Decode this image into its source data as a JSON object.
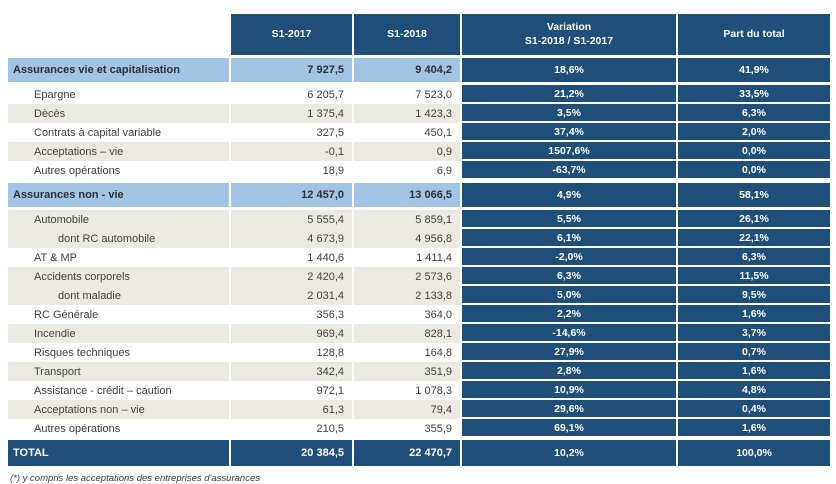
{
  "colors": {
    "header_bg": "#1F4E79",
    "section_bg": "#A2C4E5",
    "stripe_bg": "#ECEAE0",
    "dark_cell_text": "#FFFFFF",
    "body_text": "#3F3F3F"
  },
  "table": {
    "header": {
      "s1_2017": "S1-2017",
      "s1_2018": "S1-2018",
      "variation_line1": "Variation",
      "variation_line2": "S1-2018 / S1-2017",
      "part_du_total": "Part du total"
    },
    "rows": [
      {
        "type": "section",
        "stripe": "none",
        "label": "Assurances vie et capitalisation",
        "s1_2017": "7 927,5",
        "s1_2018": "9 404,2",
        "variation": "18,6%",
        "part": "41,9%"
      },
      {
        "type": "item",
        "stripe": "plain",
        "label": "Epargne",
        "s1_2017": "6 205,7",
        "s1_2018": "7 523,0",
        "variation": "21,2%",
        "part": "33,5%"
      },
      {
        "type": "item",
        "stripe": "shaded",
        "label": "Dècès",
        "s1_2017": "1 375,4",
        "s1_2018": "1 423,3",
        "variation": "3,5%",
        "part": "6,3%"
      },
      {
        "type": "item",
        "stripe": "plain",
        "label": "Contrats à capital variable",
        "s1_2017": "327,5",
        "s1_2018": "450,1",
        "variation": "37,4%",
        "part": "2,0%"
      },
      {
        "type": "item",
        "stripe": "shaded",
        "label": "Acceptations – vie",
        "s1_2017": "-0,1",
        "s1_2018": "0,9",
        "variation": "1507,6%",
        "part": "0,0%"
      },
      {
        "type": "item",
        "stripe": "plain",
        "label": "Autres opérations",
        "s1_2017": "18,9",
        "s1_2018": "6,9",
        "variation": "-63,7%",
        "part": "0,0%"
      },
      {
        "type": "section",
        "stripe": "none",
        "label": "Assurances non - vie",
        "s1_2017": "12 457,0",
        "s1_2018": "13 066,5",
        "variation": "4,9%",
        "part": "58,1%"
      },
      {
        "type": "item",
        "stripe": "shaded",
        "label": "Automobile",
        "s1_2017": "5 555,4",
        "s1_2018": "5 859,1",
        "variation": "5,5%",
        "part": "26,1%"
      },
      {
        "type": "subitem",
        "stripe": "shaded",
        "label": "dont RC automobile",
        "s1_2017": "4 673,9",
        "s1_2018": "4 956,8",
        "variation": "6,1%",
        "part": "22,1%"
      },
      {
        "type": "item",
        "stripe": "plain",
        "label": "AT & MP",
        "s1_2017": "1 440,6",
        "s1_2018": "1 411,4",
        "variation": "-2,0%",
        "part": "6,3%"
      },
      {
        "type": "item",
        "stripe": "shaded",
        "label": "Accidents corporels",
        "s1_2017": "2 420,4",
        "s1_2018": "2 573,6",
        "variation": "6,3%",
        "part": "11,5%"
      },
      {
        "type": "subitem",
        "stripe": "shaded",
        "label": "dont maladie",
        "s1_2017": "2 031,4",
        "s1_2018": "2 133,8",
        "variation": "5,0%",
        "part": "9,5%"
      },
      {
        "type": "item",
        "stripe": "plain",
        "label": "RC Générale",
        "s1_2017": "356,3",
        "s1_2018": "364,0",
        "variation": "2,2%",
        "part": "1,6%"
      },
      {
        "type": "item",
        "stripe": "shaded",
        "label": "Incendie",
        "s1_2017": "969,4",
        "s1_2018": "828,1",
        "variation": "-14,6%",
        "part": "3,7%"
      },
      {
        "type": "item",
        "stripe": "plain",
        "label": "Risques techniques",
        "s1_2017": "128,8",
        "s1_2018": "164,8",
        "variation": "27,9%",
        "part": "0,7%"
      },
      {
        "type": "item",
        "stripe": "shaded",
        "label": "Transport",
        "s1_2017": "342,4",
        "s1_2018": "351,9",
        "variation": "2,8%",
        "part": "1,6%"
      },
      {
        "type": "item",
        "stripe": "plain",
        "label": "Assistance - crédit – caution",
        "s1_2017": "972,1",
        "s1_2018": "1 078,3",
        "variation": "10,9%",
        "part": "4,8%"
      },
      {
        "type": "item",
        "stripe": "shaded",
        "label": "Acceptations non – vie",
        "s1_2017": "61,3",
        "s1_2018": "79,4",
        "variation": "29,6%",
        "part": "0,4%"
      },
      {
        "type": "item",
        "stripe": "plain",
        "label": "Autres opérations",
        "s1_2017": "210,5",
        "s1_2018": "355,9",
        "variation": "69,1%",
        "part": "1,6%"
      },
      {
        "type": "total",
        "stripe": "none",
        "label": "TOTAL",
        "s1_2017": "20 384,5",
        "s1_2018": "22 470,7",
        "variation": "10,2%",
        "part": "100,0%"
      }
    ],
    "footnote": "(*) y compris les acceptations des entreprises d'assurances"
  }
}
